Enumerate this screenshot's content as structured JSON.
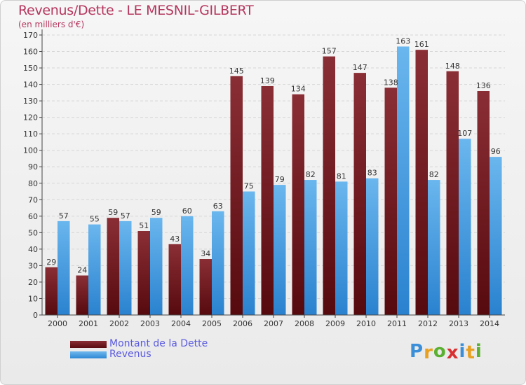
{
  "header": {
    "title": "Revenus/Dette - LE MESNIL-GILBERT",
    "subtitle": "(en milliers d'€)"
  },
  "chart_data": {
    "type": "bar",
    "categories": [
      "2000",
      "2001",
      "2002",
      "2003",
      "2004",
      "2005",
      "2006",
      "2007",
      "2008",
      "2009",
      "2010",
      "2011",
      "2012",
      "2013",
      "2014"
    ],
    "series": [
      {
        "name": "Montant de la Dette",
        "values": [
          29,
          24,
          59,
          51,
          43,
          34,
          145,
          139,
          134,
          157,
          147,
          138,
          161,
          148,
          136
        ],
        "color": "#7a1e25"
      },
      {
        "name": "Revenus",
        "values": [
          57,
          55,
          57,
          59,
          60,
          63,
          75,
          79,
          82,
          81,
          83,
          163,
          82,
          107,
          96
        ],
        "color": "#4aa3e8"
      }
    ],
    "ylim": [
      0,
      170
    ],
    "yticks": [
      0,
      10,
      20,
      30,
      40,
      50,
      60,
      70,
      80,
      90,
      100,
      110,
      120,
      130,
      140,
      150,
      160,
      170
    ],
    "grid": true,
    "legend": "bottom-left"
  },
  "legend": {
    "items": [
      {
        "label": "Montant de la Dette"
      },
      {
        "label": "Revenus"
      }
    ]
  },
  "logo": {
    "letters": [
      "P",
      "r",
      "o",
      "x",
      "i",
      "t",
      "i"
    ],
    "colors": [
      "#3a8fd8",
      "#e8a020",
      "#5ab030",
      "#d83030",
      "#3a8fd8",
      "#e8a020",
      "#5ab030"
    ]
  }
}
